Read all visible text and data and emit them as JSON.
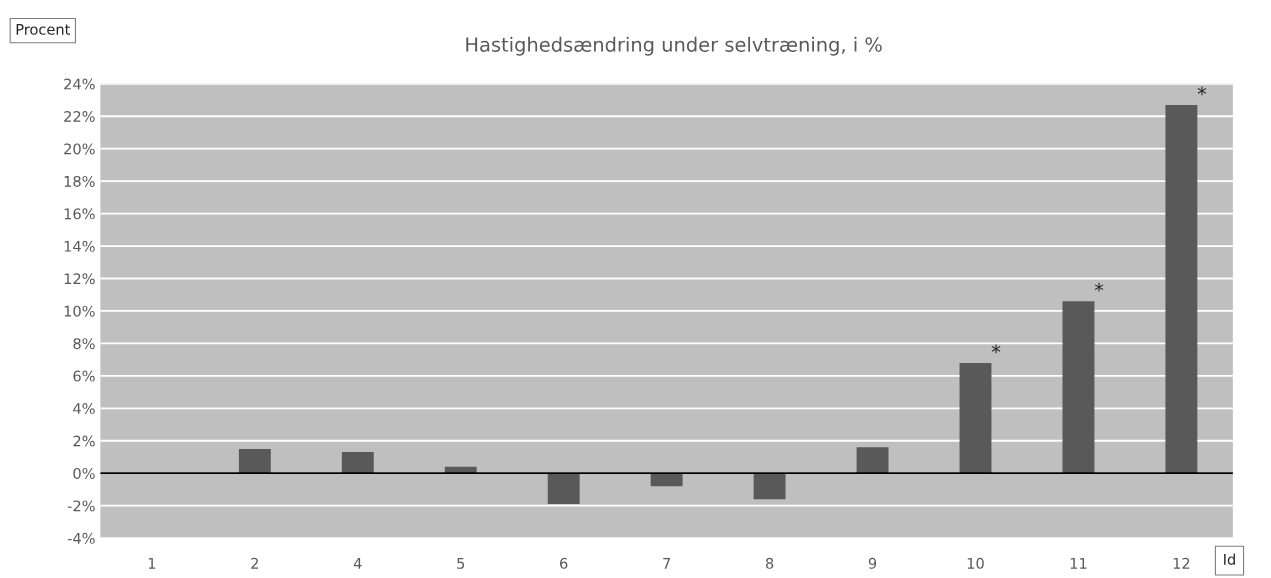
{
  "chart_data": {
    "type": "bar",
    "title": "Hastighedsændring under selvtræning, i %",
    "ylabel": "Procent",
    "xlabel": "Id",
    "categories": [
      "1",
      "2",
      "4",
      "5",
      "6",
      "7",
      "8",
      "9",
      "10",
      "11",
      "12"
    ],
    "values": [
      0,
      1.5,
      1.3,
      0.4,
      -1.9,
      -0.8,
      -1.6,
      1.6,
      6.8,
      10.6,
      22.7
    ],
    "color": "#595959",
    "ylim": [
      -4,
      24
    ],
    "yticks": [
      {
        "value": -4,
        "label": "-4%"
      },
      {
        "value": -2,
        "label": "-2%"
      },
      {
        "value": 0,
        "label": "0%"
      },
      {
        "value": 2,
        "label": "2%"
      },
      {
        "value": 4,
        "label": "4%"
      },
      {
        "value": 6,
        "label": "6%"
      },
      {
        "value": 8,
        "label": "8%"
      },
      {
        "value": 10,
        "label": "10%"
      },
      {
        "value": 12,
        "label": "12%"
      },
      {
        "value": 14,
        "label": "14%"
      },
      {
        "value": 16,
        "label": "16%"
      },
      {
        "value": 18,
        "label": "18%"
      },
      {
        "value": 20,
        "label": "20%"
      },
      {
        "value": 22,
        "label": "22%"
      },
      {
        "value": 24,
        "label": "24%"
      }
    ],
    "grid": "y",
    "annotations": [
      {
        "text": "*",
        "x": "10",
        "y": 6.8
      },
      {
        "text": "*",
        "x": "11",
        "y": 10.6
      },
      {
        "text": "*",
        "x": "12",
        "y": 22.7
      }
    ]
  }
}
